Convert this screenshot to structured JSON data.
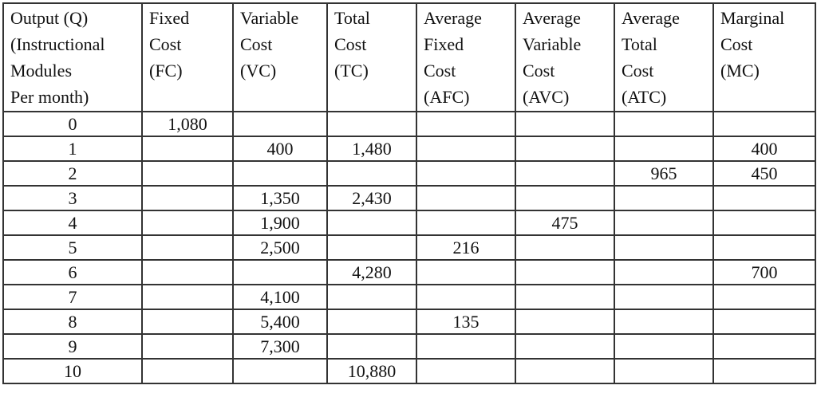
{
  "table": {
    "title": "Cost schedule table",
    "column_keys": [
      "output",
      "fc",
      "vc",
      "tc",
      "afc",
      "avc",
      "atc",
      "mc"
    ],
    "columns": [
      {
        "label": "Output (Q)\n(Instructional\nModules\nPer month)"
      },
      {
        "label": "Fixed\nCost\n(FC)"
      },
      {
        "label": "Variable\nCost\n(VC)"
      },
      {
        "label": "Total\nCost\n(TC)"
      },
      {
        "label": "Average\nFixed\nCost\n(AFC)"
      },
      {
        "label": "Average\nVariable\nCost\n(AVC)"
      },
      {
        "label": "Average\nTotal\nCost\n(ATC)"
      },
      {
        "label": "Marginal\nCost\n(MC)"
      }
    ],
    "rows": [
      {
        "cells": [
          "0",
          "1,080",
          "",
          "",
          "",
          "",
          "",
          ""
        ]
      },
      {
        "cells": [
          "1",
          "",
          "400",
          "1,480",
          "",
          "",
          "",
          "400"
        ]
      },
      {
        "cells": [
          "2",
          "",
          "",
          "",
          "",
          "",
          "965",
          "450"
        ]
      },
      {
        "cells": [
          "3",
          "",
          "1,350",
          "2,430",
          "",
          "",
          "",
          ""
        ]
      },
      {
        "cells": [
          "4",
          "",
          "1,900",
          "",
          "",
          "475",
          "",
          ""
        ]
      },
      {
        "cells": [
          "5",
          "",
          "2,500",
          "",
          "216",
          "",
          "",
          ""
        ]
      },
      {
        "cells": [
          "6",
          "",
          "",
          "4,280",
          "",
          "",
          "",
          "700"
        ]
      },
      {
        "cells": [
          "7",
          "",
          "4,100",
          "",
          "",
          "",
          "",
          ""
        ]
      },
      {
        "cells": [
          "8",
          "",
          "5,400",
          "",
          "135",
          "",
          "",
          ""
        ]
      },
      {
        "cells": [
          "9",
          "",
          "7,300",
          "",
          "",
          "",
          "",
          ""
        ]
      },
      {
        "cells": [
          "10",
          "",
          "",
          "10,880",
          "",
          "",
          "",
          ""
        ]
      }
    ]
  }
}
